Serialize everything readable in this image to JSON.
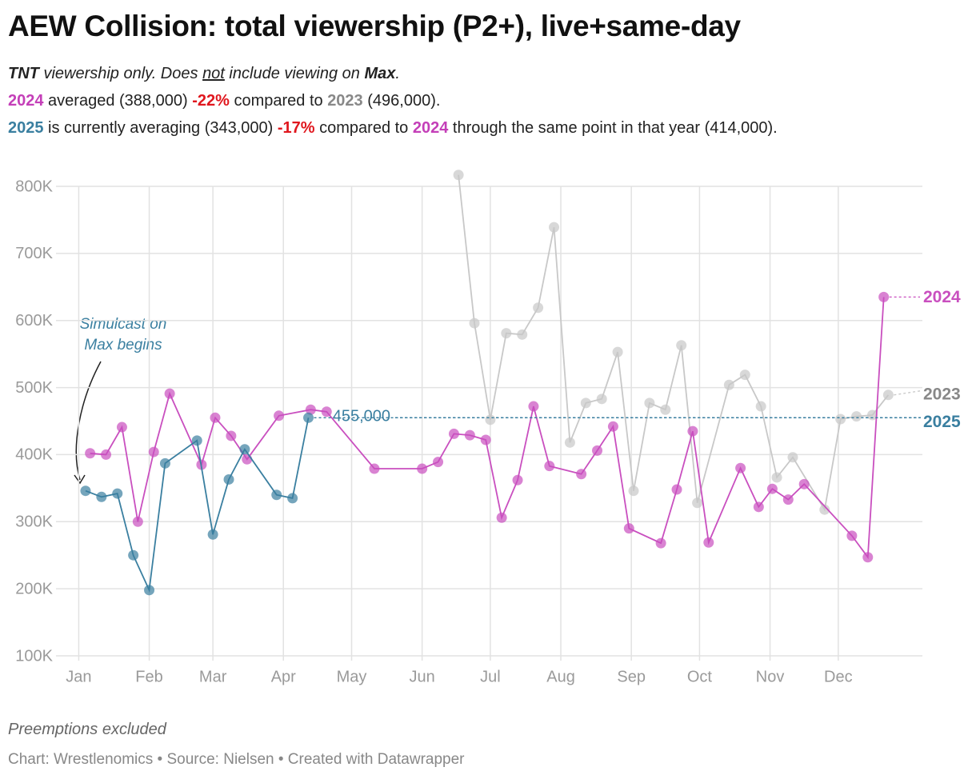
{
  "chart_data": {
    "type": "line",
    "title": "AEW Collision: total viewership (P2+), live+same-day",
    "subtitle": [
      [
        "TNT",
        " viewership only. Does ",
        "not",
        " include viewing on ",
        "Max",
        "."
      ],
      [
        "2024",
        " averaged (388,000) ",
        "-22%",
        " compared to ",
        "2023",
        " (496,000)."
      ],
      [
        "2025",
        " is currently averaging (343,000) ",
        "-17%",
        " compared to ",
        "2024",
        " through the same point in that year (414,000)."
      ]
    ],
    "notes": "Preemptions excluded",
    "source": "Chart: Wrestlenomics • Source: Nielsen • Created with Datawrapper",
    "annotation": [
      "Simulcast on",
      "Max begins"
    ],
    "xlim": [
      -9,
      372
    ],
    "xticks": [
      {
        "value": 1,
        "label": "Jan"
      },
      {
        "value": 32,
        "label": "Feb"
      },
      {
        "value": 60,
        "label": "Mar"
      },
      {
        "value": 91,
        "label": "Apr"
      },
      {
        "value": 121,
        "label": "May"
      },
      {
        "value": 152,
        "label": "Jun"
      },
      {
        "value": 182,
        "label": "Jul"
      },
      {
        "value": 213,
        "label": "Aug"
      },
      {
        "value": 244,
        "label": "Sep"
      },
      {
        "value": 274,
        "label": "Oct"
      },
      {
        "value": 305,
        "label": "Nov"
      },
      {
        "value": 335,
        "label": "Dec"
      }
    ],
    "ylim": [
      100000,
      800000
    ],
    "yticks": [
      {
        "value": 100000,
        "label": "100K"
      },
      {
        "value": 200000,
        "label": "200K"
      },
      {
        "value": 300000,
        "label": "300K"
      },
      {
        "value": 400000,
        "label": "400K"
      },
      {
        "value": 500000,
        "label": "500K"
      },
      {
        "value": 600000,
        "label": "600K"
      },
      {
        "value": 700000,
        "label": "700K"
      },
      {
        "value": 800000,
        "label": "800K"
      }
    ],
    "grid": true,
    "reference_line": {
      "value": 455000,
      "label": "455,000",
      "color": "#3a7fa0"
    },
    "series": [
      {
        "name": "2023",
        "color": "#c8c8c8",
        "x": [
          168,
          175,
          182,
          189,
          196,
          203,
          210,
          217,
          224,
          231,
          238,
          245,
          252,
          259,
          266,
          273,
          287,
          294,
          301,
          308,
          315,
          329,
          336,
          343,
          350,
          357
        ],
        "values": [
          817000,
          596000,
          452000,
          581000,
          579000,
          619000,
          739000,
          418000,
          477000,
          483000,
          553000,
          346000,
          477000,
          467000,
          563000,
          328000,
          504000,
          519000,
          472000,
          366000,
          396000,
          318000,
          453000,
          457000,
          459000,
          489000
        ]
      },
      {
        "name": "2024",
        "color": "#c94fbf",
        "x": [
          6,
          13,
          20,
          27,
          34,
          41,
          55,
          61,
          68,
          75,
          89,
          103,
          110,
          131,
          152,
          159,
          166,
          173,
          180,
          187,
          194,
          201,
          208,
          222,
          229,
          236,
          243,
          257,
          264,
          271,
          278,
          292,
          300,
          306,
          313,
          320,
          341,
          348,
          355
        ],
        "values": [
          402000,
          400000,
          441000,
          300000,
          404000,
          491000,
          385000,
          455000,
          428000,
          393000,
          458000,
          467000,
          464000,
          379000,
          379000,
          389000,
          431000,
          429000,
          422000,
          306000,
          362000,
          472000,
          383000,
          371000,
          406000,
          442000,
          290000,
          268000,
          348000,
          435000,
          269000,
          380000,
          322000,
          349000,
          333000,
          356000,
          279000,
          247000,
          635000
        ]
      },
      {
        "name": "2025",
        "color": "#3a7fa0",
        "x": [
          4,
          11,
          18,
          25,
          32,
          39,
          53,
          60,
          67,
          74,
          88,
          95,
          102
        ],
        "values": [
          346000,
          337000,
          342000,
          250000,
          198000,
          387000,
          421000,
          281000,
          363000,
          408000,
          340000,
          335000,
          455000
        ]
      }
    ]
  }
}
